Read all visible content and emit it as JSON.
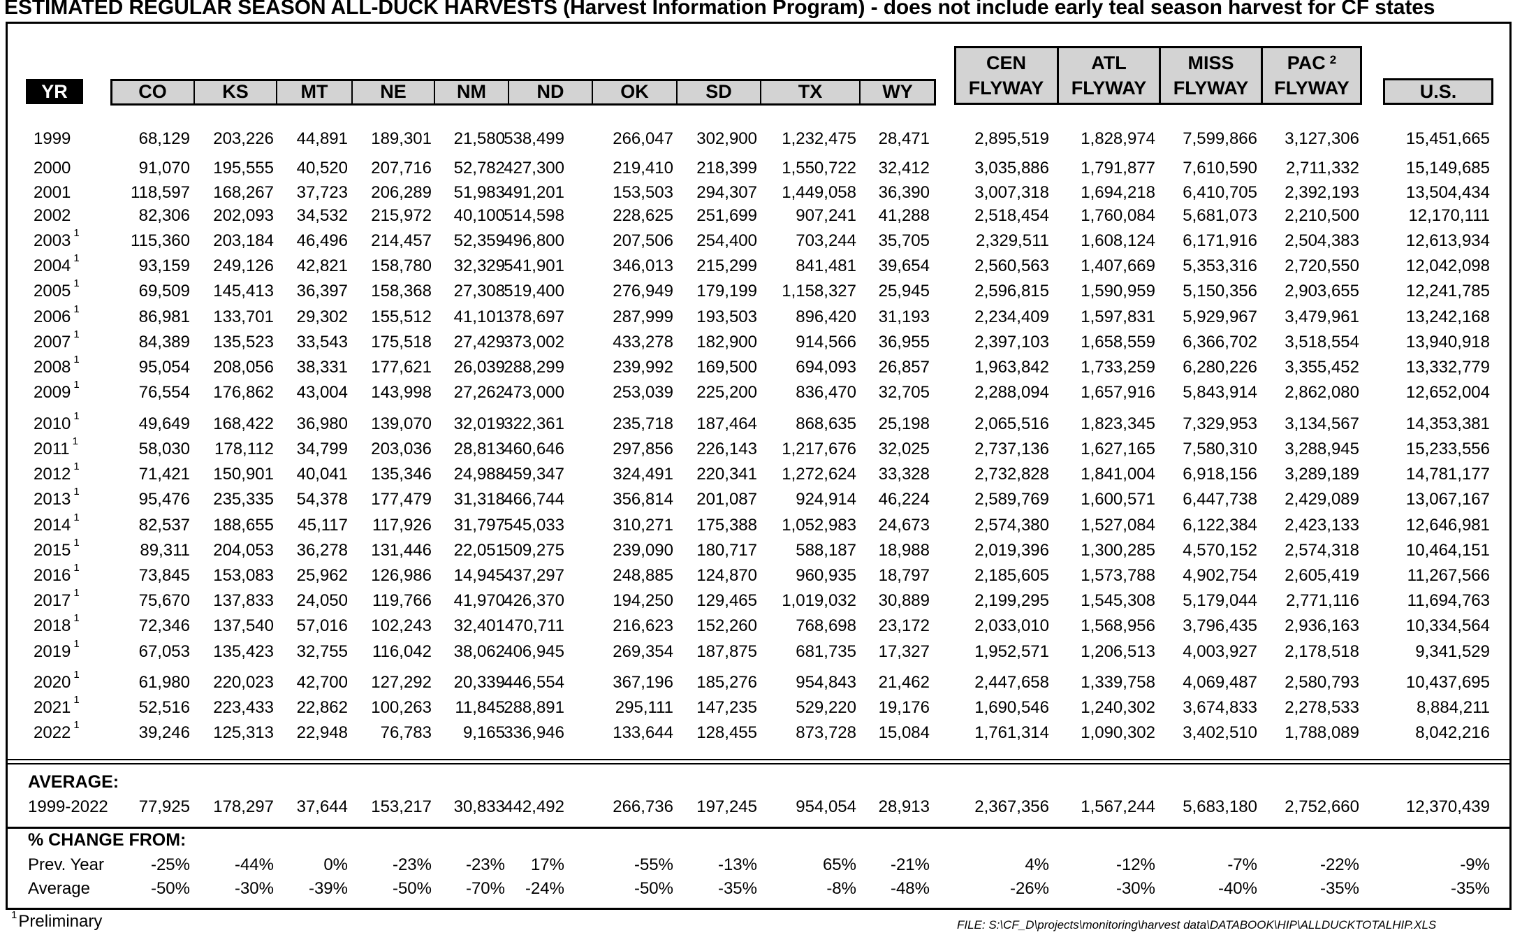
{
  "title": "ESTIMATED REGULAR SEASON ALL-DUCK HARVESTS (Harvest Information Program) - does not include early teal season harvest for CF states",
  "headers": {
    "yr": "YR",
    "states": [
      "CO",
      "KS",
      "MT",
      "NE",
      "NM",
      "ND",
      "OK",
      "SD",
      "TX",
      "WY"
    ],
    "flyways": [
      {
        "top": "CEN",
        "bottom": "FLYWAY",
        "sup": ""
      },
      {
        "top": "ATL",
        "bottom": "FLYWAY",
        "sup": ""
      },
      {
        "top": "MISS",
        "bottom": "FLYWAY",
        "sup": ""
      },
      {
        "top": "PAC",
        "bottom": "FLYWAY",
        "sup": "2"
      }
    ],
    "us": "U.S."
  },
  "rows": [
    {
      "yr": "1999",
      "sup": "",
      "v": [
        "68,129",
        "203,226",
        "44,891",
        "189,301",
        "21,580",
        "538,499",
        "266,047",
        "302,900",
        "1,232,475",
        "28,471",
        "2,895,519",
        "1,828,974",
        "7,599,866",
        "3,127,306",
        "15,451,665"
      ]
    },
    {
      "yr": "2000",
      "sup": "",
      "v": [
        "91,070",
        "195,555",
        "40,520",
        "207,716",
        "52,782",
        "427,300",
        "219,410",
        "218,399",
        "1,550,722",
        "32,412",
        "3,035,886",
        "1,791,877",
        "7,610,590",
        "2,711,332",
        "15,149,685"
      ]
    },
    {
      "yr": "2001",
      "sup": "",
      "v": [
        "118,597",
        "168,267",
        "37,723",
        "206,289",
        "51,983",
        "491,201",
        "153,503",
        "294,307",
        "1,449,058",
        "36,390",
        "3,007,318",
        "1,694,218",
        "6,410,705",
        "2,392,193",
        "13,504,434"
      ]
    },
    {
      "yr": "2002",
      "sup": "",
      "v": [
        "82,306",
        "202,093",
        "34,532",
        "215,972",
        "40,100",
        "514,598",
        "228,625",
        "251,699",
        "907,241",
        "41,288",
        "2,518,454",
        "1,760,084",
        "5,681,073",
        "2,210,500",
        "12,170,111"
      ]
    },
    {
      "yr": "2003",
      "sup": "1",
      "v": [
        "115,360",
        "203,184",
        "46,496",
        "214,457",
        "52,359",
        "496,800",
        "207,506",
        "254,400",
        "703,244",
        "35,705",
        "2,329,511",
        "1,608,124",
        "6,171,916",
        "2,504,383",
        "12,613,934"
      ]
    },
    {
      "yr": "2004",
      "sup": "1",
      "v": [
        "93,159",
        "249,126",
        "42,821",
        "158,780",
        "32,329",
        "541,901",
        "346,013",
        "215,299",
        "841,481",
        "39,654",
        "2,560,563",
        "1,407,669",
        "5,353,316",
        "2,720,550",
        "12,042,098"
      ]
    },
    {
      "yr": "2005",
      "sup": "1",
      "v": [
        "69,509",
        "145,413",
        "36,397",
        "158,368",
        "27,308",
        "519,400",
        "276,949",
        "179,199",
        "1,158,327",
        "25,945",
        "2,596,815",
        "1,590,959",
        "5,150,356",
        "2,903,655",
        "12,241,785"
      ]
    },
    {
      "yr": "2006",
      "sup": "1",
      "v": [
        "86,981",
        "133,701",
        "29,302",
        "155,512",
        "41,101",
        "378,697",
        "287,999",
        "193,503",
        "896,420",
        "31,193",
        "2,234,409",
        "1,597,831",
        "5,929,967",
        "3,479,961",
        "13,242,168"
      ]
    },
    {
      "yr": "2007",
      "sup": "1",
      "v": [
        "84,389",
        "135,523",
        "33,543",
        "175,518",
        "27,429",
        "373,002",
        "433,278",
        "182,900",
        "914,566",
        "36,955",
        "2,397,103",
        "1,658,559",
        "6,366,702",
        "3,518,554",
        "13,940,918"
      ]
    },
    {
      "yr": "2008",
      "sup": "1",
      "v": [
        "95,054",
        "208,056",
        "38,331",
        "177,621",
        "26,039",
        "288,299",
        "239,992",
        "169,500",
        "694,093",
        "26,857",
        "1,963,842",
        "1,733,259",
        "6,280,226",
        "3,355,452",
        "13,332,779"
      ]
    },
    {
      "yr": "2009",
      "sup": "1",
      "v": [
        "76,554",
        "176,862",
        "43,004",
        "143,998",
        "27,262",
        "473,000",
        "253,039",
        "225,200",
        "836,470",
        "32,705",
        "2,288,094",
        "1,657,916",
        "5,843,914",
        "2,862,080",
        "12,652,004"
      ]
    },
    {
      "yr": "2010",
      "sup": "1",
      "v": [
        "49,649",
        "168,422",
        "36,980",
        "139,070",
        "32,019",
        "322,361",
        "235,718",
        "187,464",
        "868,635",
        "25,198",
        "2,065,516",
        "1,823,345",
        "7,329,953",
        "3,134,567",
        "14,353,381"
      ]
    },
    {
      "yr": "2011",
      "sup": "1",
      "v": [
        "58,030",
        "178,112",
        "34,799",
        "203,036",
        "28,813",
        "460,646",
        "297,856",
        "226,143",
        "1,217,676",
        "32,025",
        "2,737,136",
        "1,627,165",
        "7,580,310",
        "3,288,945",
        "15,233,556"
      ]
    },
    {
      "yr": "2012",
      "sup": "1",
      "v": [
        "71,421",
        "150,901",
        "40,041",
        "135,346",
        "24,988",
        "459,347",
        "324,491",
        "220,341",
        "1,272,624",
        "33,328",
        "2,732,828",
        "1,841,004",
        "6,918,156",
        "3,289,189",
        "14,781,177"
      ]
    },
    {
      "yr": "2013",
      "sup": "1",
      "v": [
        "95,476",
        "235,335",
        "54,378",
        "177,479",
        "31,318",
        "466,744",
        "356,814",
        "201,087",
        "924,914",
        "46,224",
        "2,589,769",
        "1,600,571",
        "6,447,738",
        "2,429,089",
        "13,067,167"
      ]
    },
    {
      "yr": "2014",
      "sup": "1",
      "v": [
        "82,537",
        "188,655",
        "45,117",
        "117,926",
        "31,797",
        "545,033",
        "310,271",
        "175,388",
        "1,052,983",
        "24,673",
        "2,574,380",
        "1,527,084",
        "6,122,384",
        "2,423,133",
        "12,646,981"
      ]
    },
    {
      "yr": "2015",
      "sup": "1",
      "v": [
        "89,311",
        "204,053",
        "36,278",
        "131,446",
        "22,051",
        "509,275",
        "239,090",
        "180,717",
        "588,187",
        "18,988",
        "2,019,396",
        "1,300,285",
        "4,570,152",
        "2,574,318",
        "10,464,151"
      ]
    },
    {
      "yr": "2016",
      "sup": "1",
      "v": [
        "73,845",
        "153,083",
        "25,962",
        "126,986",
        "14,945",
        "437,297",
        "248,885",
        "124,870",
        "960,935",
        "18,797",
        "2,185,605",
        "1,573,788",
        "4,902,754",
        "2,605,419",
        "11,267,566"
      ]
    },
    {
      "yr": "2017",
      "sup": "1",
      "v": [
        "75,670",
        "137,833",
        "24,050",
        "119,766",
        "41,970",
        "426,370",
        "194,250",
        "129,465",
        "1,019,032",
        "30,889",
        "2,199,295",
        "1,545,308",
        "5,179,044",
        "2,771,116",
        "11,694,763"
      ]
    },
    {
      "yr": "2018",
      "sup": "1",
      "v": [
        "72,346",
        "137,540",
        "57,016",
        "102,243",
        "32,401",
        "470,711",
        "216,623",
        "152,260",
        "768,698",
        "23,172",
        "2,033,010",
        "1,568,956",
        "3,796,435",
        "2,936,163",
        "10,334,564"
      ]
    },
    {
      "yr": "2019",
      "sup": "1",
      "v": [
        "67,053",
        "135,423",
        "32,755",
        "116,042",
        "38,062",
        "406,945",
        "269,354",
        "187,875",
        "681,735",
        "17,327",
        "1,952,571",
        "1,206,513",
        "4,003,927",
        "2,178,518",
        "9,341,529"
      ]
    },
    {
      "yr": "2020",
      "sup": "1",
      "v": [
        "61,980",
        "220,023",
        "42,700",
        "127,292",
        "20,339",
        "446,554",
        "367,196",
        "185,276",
        "954,843",
        "21,462",
        "2,447,658",
        "1,339,758",
        "4,069,487",
        "2,580,793",
        "10,437,695"
      ]
    },
    {
      "yr": "2021",
      "sup": "1",
      "v": [
        "52,516",
        "223,433",
        "22,862",
        "100,263",
        "11,845",
        "288,891",
        "295,111",
        "147,235",
        "529,220",
        "19,176",
        "1,690,546",
        "1,240,302",
        "3,674,833",
        "2,278,533",
        "8,884,211"
      ]
    },
    {
      "yr": "2022",
      "sup": "1",
      "v": [
        "39,246",
        "125,313",
        "22,948",
        "76,783",
        "9,165",
        "336,946",
        "133,644",
        "128,455",
        "873,728",
        "15,084",
        "1,761,314",
        "1,090,302",
        "3,402,510",
        "1,788,089",
        "8,042,216"
      ]
    }
  ],
  "average": {
    "title": "AVERAGE:",
    "label": "1999-2022",
    "v": [
      "77,925",
      "178,297",
      "37,644",
      "153,217",
      "30,833",
      "442,492",
      "266,736",
      "197,245",
      "954,054",
      "28,913",
      "2,367,356",
      "1,567,244",
      "5,683,180",
      "2,752,660",
      "12,370,439"
    ]
  },
  "change": {
    "title": "% CHANGE FROM:",
    "rows": [
      {
        "label": "Prev. Year",
        "v": [
          "-25%",
          "-44%",
          "0%",
          "-23%",
          "-23%",
          "17%",
          "-55%",
          "-13%",
          "65%",
          "-21%",
          "4%",
          "-12%",
          "-7%",
          "-22%",
          "-9%"
        ]
      },
      {
        "label": "Average",
        "v": [
          "-50%",
          "-30%",
          "-39%",
          "-50%",
          "-70%",
          "-24%",
          "-50%",
          "-35%",
          "-8%",
          "-48%",
          "-26%",
          "-30%",
          "-40%",
          "-35%",
          "-35%"
        ]
      }
    ]
  },
  "footnote": {
    "sup": "1",
    "text": "Preliminary"
  },
  "file_path": "FILE: S:\\CF_D\\projects\\monitoring\\harvest data\\DATABOOK\\HIP\\ALLDUCKTOTALHIP.XLS"
}
